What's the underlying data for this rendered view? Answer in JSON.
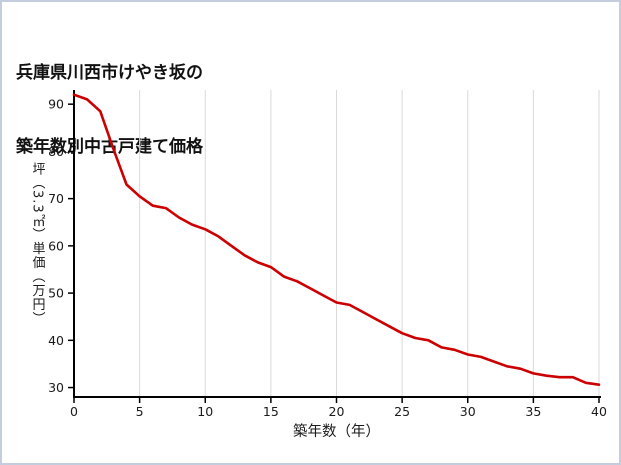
{
  "page": {
    "title_line1": "兵庫県川西市けやき坂の",
    "title_line2": "築年数別中古戸建て価格"
  },
  "chart_data": {
    "type": "line",
    "title": "兵庫県川西市けやき坂の築年数別中古戸建て価格",
    "xlabel": "築年数（年）",
    "ylabel": "坪（3.3㎡）単価（万円）",
    "series_name": "中古戸建て坪単価",
    "x": [
      0,
      1,
      2,
      3,
      4,
      5,
      6,
      7,
      8,
      9,
      10,
      11,
      12,
      13,
      14,
      15,
      16,
      17,
      18,
      19,
      20,
      21,
      22,
      23,
      24,
      25,
      26,
      27,
      28,
      29,
      30,
      31,
      32,
      33,
      34,
      35,
      36,
      37,
      38,
      39,
      40
    ],
    "values": [
      92,
      91,
      88.5,
      80.5,
      73,
      70.5,
      68.5,
      68,
      66,
      64.5,
      63.5,
      62,
      60,
      58,
      56.5,
      55.5,
      53.5,
      52.5,
      51,
      49.5,
      48,
      47.5,
      46,
      44.5,
      43,
      41.5,
      40.5,
      40,
      38.5,
      38,
      37,
      36.5,
      35.5,
      34.5,
      34,
      33,
      32.5,
      32.2,
      32.2,
      31,
      30.6
    ],
    "x_ticks": [
      0,
      5,
      10,
      15,
      20,
      25,
      30,
      35,
      40
    ],
    "y_ticks": [
      30,
      40,
      50,
      60,
      70,
      80,
      90
    ],
    "xlim": [
      0,
      40
    ],
    "ylim": [
      28,
      93
    ],
    "line_color": "#cc0000",
    "grid_color": "#d9d9d9",
    "axis_color": "#000000",
    "grid": "vertical-only",
    "legend": "none"
  }
}
